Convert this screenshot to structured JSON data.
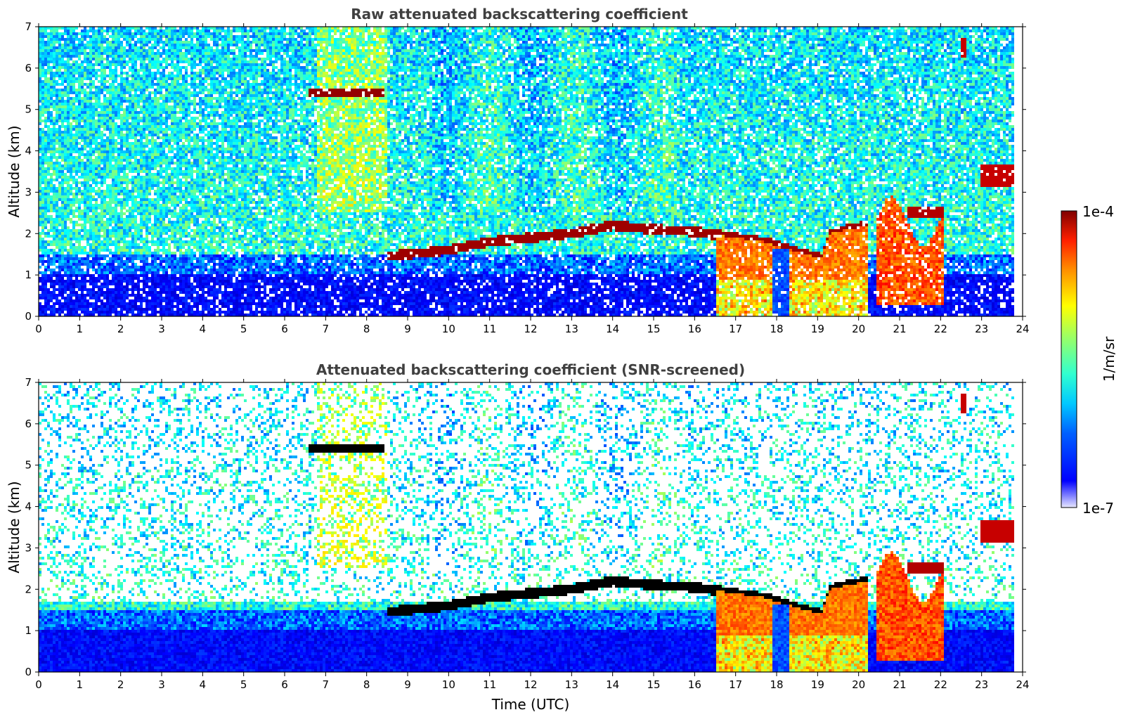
{
  "chart_data": [
    {
      "type": "heatmap",
      "title": "Raw attenuated backscattering coefficient",
      "xlabel": "",
      "ylabel": "Altitude (km)",
      "xlim": [
        0,
        24
      ],
      "ylim": [
        0,
        7
      ],
      "xticks": [
        0,
        1,
        2,
        3,
        4,
        5,
        6,
        7,
        8,
        9,
        10,
        11,
        12,
        13,
        14,
        15,
        16,
        17,
        18,
        19,
        20,
        21,
        22,
        23,
        24
      ],
      "yticks": [
        0,
        1,
        2,
        3,
        4,
        5,
        6,
        7
      ],
      "screened": false,
      "features": {
        "cloud_layer_km": [
          [
            8.5,
            1.45
          ],
          [
            9.5,
            1.55
          ],
          [
            10,
            1.6
          ],
          [
            11,
            1.8
          ],
          [
            12,
            1.9
          ],
          [
            13,
            2.0
          ],
          [
            14,
            2.2
          ],
          [
            15,
            2.1
          ],
          [
            16,
            2.05
          ],
          [
            17,
            1.9
          ],
          [
            17.7,
            1.8
          ],
          [
            18.5,
            1.55
          ],
          [
            19.1,
            1.4
          ],
          [
            19.3,
            2.0
          ],
          [
            20.2,
            2.2
          ]
        ],
        "elevated_cloud": {
          "time": [
            6.6,
            8.4
          ],
          "altitude_km": 5.4
        },
        "late_clouds": [
          {
            "time": [
              23.0,
              23.8
            ],
            "altitude_km": 3.4
          },
          {
            "time": [
              22.5,
              22.6
            ],
            "altitude_km": 6.5
          }
        ]
      }
    },
    {
      "type": "heatmap",
      "title": "Attenuated backscattering coefficient (SNR-screened)",
      "xlabel": "Time (UTC)",
      "ylabel": "Altitude (km)",
      "xlim": [
        0,
        24
      ],
      "ylim": [
        0,
        7
      ],
      "xticks": [
        0,
        1,
        2,
        3,
        4,
        5,
        6,
        7,
        8,
        9,
        10,
        11,
        12,
        13,
        14,
        15,
        16,
        17,
        18,
        19,
        20,
        21,
        22,
        23,
        24
      ],
      "yticks": [
        0,
        1,
        2,
        3,
        4,
        5,
        6,
        7
      ],
      "screened": true
    }
  ],
  "colorbar": {
    "label": "1/m/sr",
    "max_label": "1e-4",
    "min_label": "1e-7",
    "colormap": "jet",
    "scale": "log"
  },
  "colors": {
    "low": "#0000ff",
    "mid": "#ffff00",
    "high": "#800000",
    "cloud_top": "#000000"
  }
}
